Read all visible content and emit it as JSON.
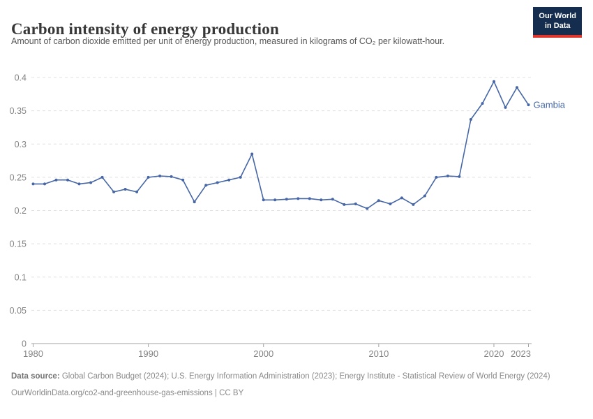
{
  "header": {
    "title": "Carbon intensity of energy production",
    "subtitle": "Amount of carbon dioxide emitted per unit of energy production, measured in kilograms of CO₂ per kilowatt-hour.",
    "logo": {
      "line1": "Our World",
      "line2": "in Data"
    }
  },
  "chart_data": {
    "type": "line",
    "title": "Carbon intensity of energy production",
    "xlabel": "",
    "ylabel": "kilograms of CO₂ per kilowatt-hour",
    "xlim": [
      1980,
      2023
    ],
    "ylim": [
      0,
      0.4
    ],
    "grid": "horizontal-dashed",
    "legend_position": "end-of-line-label",
    "x_ticks": [
      1980,
      1990,
      2000,
      2010,
      2020,
      2023
    ],
    "y_ticks": [
      0,
      0.05,
      0.1,
      0.15,
      0.2,
      0.25,
      0.3,
      0.35,
      0.4
    ],
    "y_tick_labels": [
      "0",
      "0.05",
      "0.1",
      "0.15",
      "0.2",
      "0.25",
      "0.3",
      "0.35",
      "0.4"
    ],
    "series": [
      {
        "name": "Gambia",
        "color": "#4666a5",
        "x": [
          1980,
          1981,
          1982,
          1983,
          1984,
          1985,
          1986,
          1987,
          1988,
          1989,
          1990,
          1991,
          1992,
          1993,
          1994,
          1995,
          1996,
          1997,
          1998,
          1999,
          2000,
          2001,
          2002,
          2003,
          2004,
          2005,
          2006,
          2007,
          2008,
          2009,
          2010,
          2011,
          2012,
          2013,
          2014,
          2015,
          2016,
          2017,
          2018,
          2019,
          2020,
          2021,
          2022,
          2023
        ],
        "values": [
          0.24,
          0.24,
          0.246,
          0.246,
          0.24,
          0.242,
          0.25,
          0.228,
          0.232,
          0.228,
          0.25,
          0.252,
          0.251,
          0.246,
          0.213,
          0.238,
          0.242,
          0.246,
          0.25,
          0.285,
          0.216,
          0.216,
          0.217,
          0.218,
          0.218,
          0.216,
          0.217,
          0.209,
          0.21,
          0.203,
          0.215,
          0.21,
          0.219,
          0.209,
          0.222,
          0.25,
          0.252,
          0.251,
          0.337,
          0.361,
          0.394,
          0.355,
          0.385,
          0.359
        ]
      }
    ]
  },
  "footer": {
    "source_label": "Data source:",
    "source_text": " Global Carbon Budget (2024); U.S. Energy Information Administration (2023); Energy Institute - Statistical Review of World Energy (2024)",
    "link_text": "OurWorldinData.org/co2-and-greenhouse-gas-emissions",
    "license_suffix": " | CC BY"
  },
  "colors": {
    "line": "#4666a5",
    "grid": "#e0e0e0",
    "axis": "#a3a3a3",
    "tick_text": "#848484",
    "logo_bg": "#152d4f",
    "logo_stripe": "#e0352c"
  }
}
